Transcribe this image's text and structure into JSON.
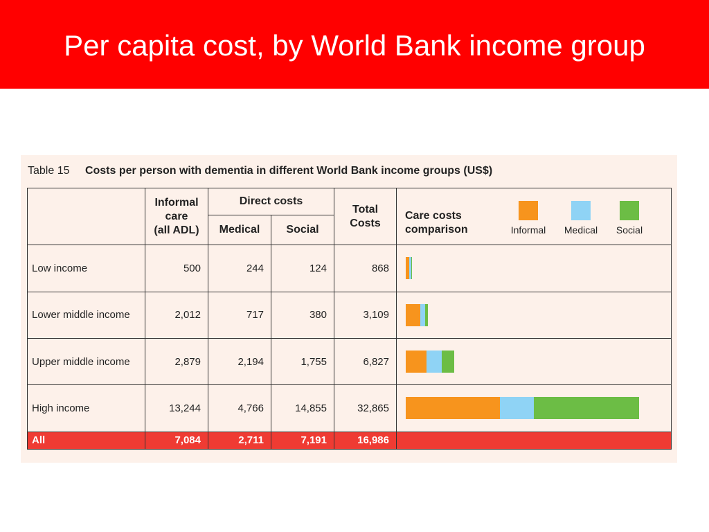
{
  "slide": {
    "title": "Per capita cost, by World Bank income group"
  },
  "table": {
    "label": "Table 15",
    "caption": "Costs per person with dementia in different World Bank income groups (US$)",
    "headers": {
      "informal": [
        "Informal",
        "care",
        "(all ADL)"
      ],
      "direct": "Direct costs",
      "medical": "Medical",
      "social": "Social",
      "total": [
        "Total",
        "Costs"
      ],
      "care": [
        "Care costs",
        "comparison"
      ]
    },
    "legend": [
      {
        "label": "Informal",
        "color": "#f7941d"
      },
      {
        "label": "Medical",
        "color": "#8fd3f5"
      },
      {
        "label": "Social",
        "color": "#6cbd45"
      }
    ],
    "rows": [
      {
        "group": "Low income",
        "informal": "500",
        "medical": "244",
        "social": "124",
        "total": "868"
      },
      {
        "group": "Lower middle income",
        "informal": "2,012",
        "medical": "717",
        "social": "380",
        "total": "3,109"
      },
      {
        "group": "Upper middle income",
        "informal": "2,879",
        "medical": "2,194",
        "social": "1,755",
        "total": "6,827"
      },
      {
        "group": "High income",
        "informal": "13,244",
        "medical": "4,766",
        "social": "14,855",
        "total": "32,865"
      }
    ],
    "all_row": {
      "group": "All",
      "informal": "7,084",
      "medical": "2,711",
      "social": "7,191",
      "total": "16,986"
    }
  },
  "chart_data": {
    "type": "bar",
    "categories": [
      "Low income",
      "Lower middle income",
      "Upper middle income",
      "High income"
    ],
    "series": [
      {
        "name": "Informal",
        "values": [
          500,
          2012,
          2879,
          13244
        ]
      },
      {
        "name": "Medical",
        "values": [
          244,
          717,
          2194,
          4766
        ]
      },
      {
        "name": "Social",
        "values": [
          124,
          380,
          1755,
          14855
        ]
      }
    ],
    "stacked": true,
    "orientation": "horizontal",
    "colors": [
      "#f7941d",
      "#8fd3f5",
      "#6cbd45"
    ]
  }
}
